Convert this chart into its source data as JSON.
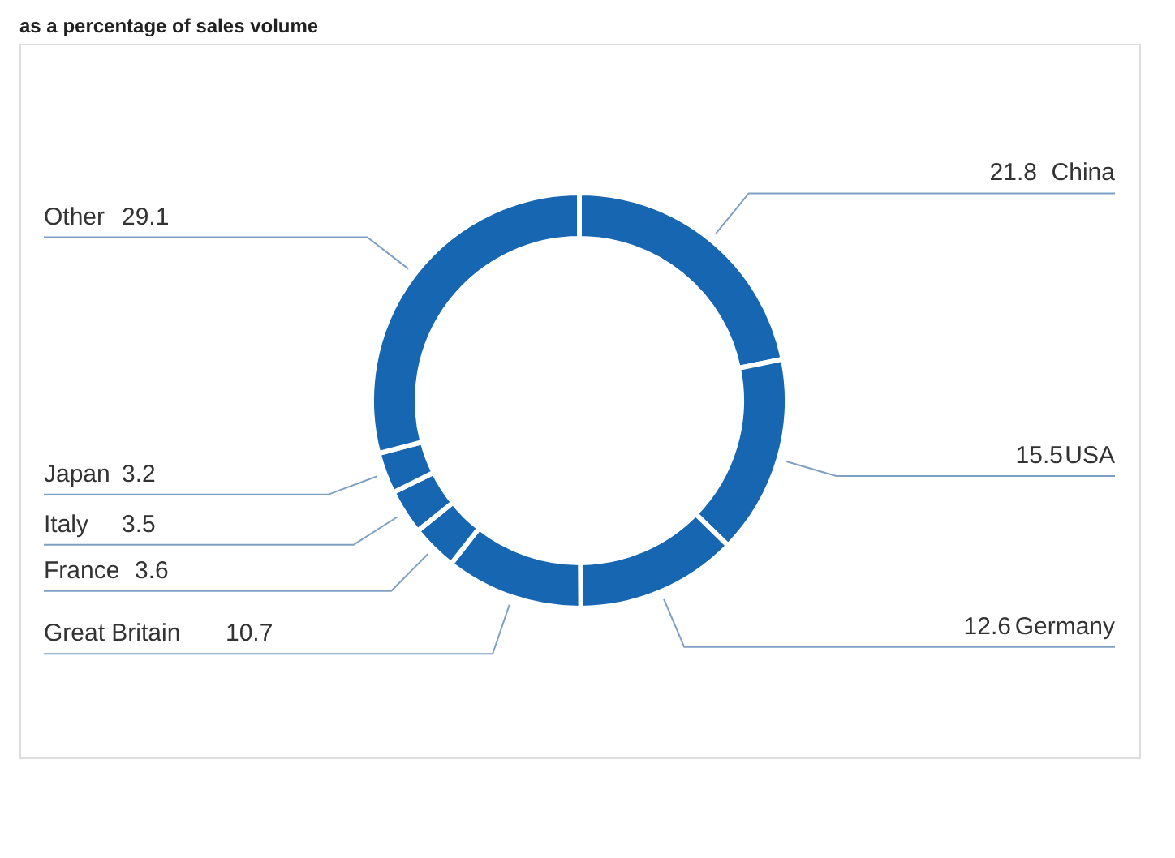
{
  "chart_data": {
    "type": "donut",
    "title": "as a percentage of sales volume",
    "categories": [
      "China",
      "USA",
      "Germany",
      "Great Britain",
      "France",
      "Italy",
      "Japan",
      "Other"
    ],
    "values": [
      21.8,
      15.5,
      12.6,
      10.7,
      3.6,
      3.5,
      3.2,
      29.1
    ],
    "colors": [
      "#1766b2",
      "#1766b2",
      "#1766b2",
      "#1766b2",
      "#1766b2",
      "#1766b2",
      "#1766b2",
      "#1766b2"
    ],
    "data_labels": true
  }
}
